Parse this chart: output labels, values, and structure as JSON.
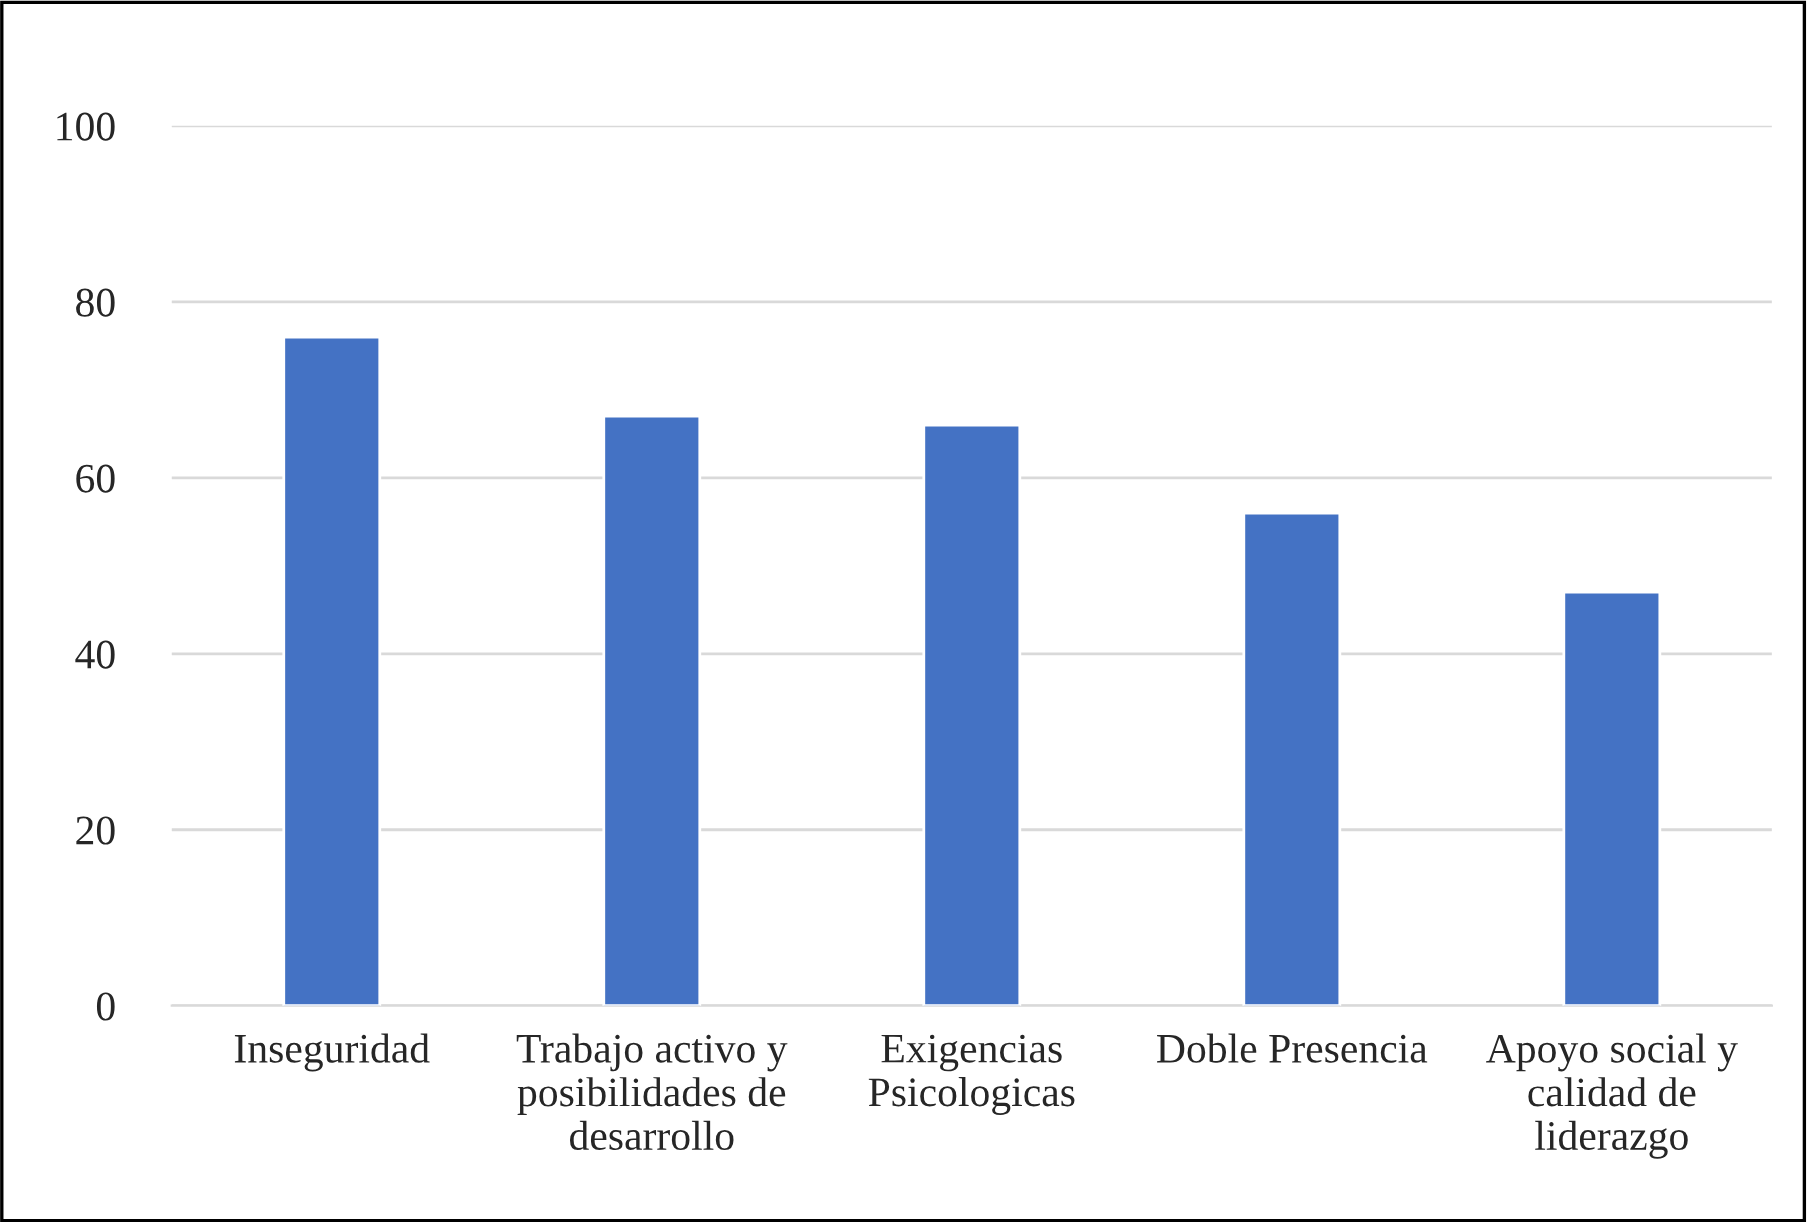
{
  "chart_data": {
    "type": "bar",
    "categories": [
      "Inseguridad",
      "Trabajo activo y posibilidades de desarrollo",
      "Exigencias Psicologicas",
      "Doble Presencia",
      "Apoyo social y calidad de liderazgo"
    ],
    "values": [
      76,
      67,
      66,
      56,
      47
    ],
    "color": "#4472c4",
    "ylim": [
      0,
      100
    ],
    "yticks": [
      0,
      20,
      40,
      60,
      80,
      100
    ],
    "grid": "y"
  }
}
